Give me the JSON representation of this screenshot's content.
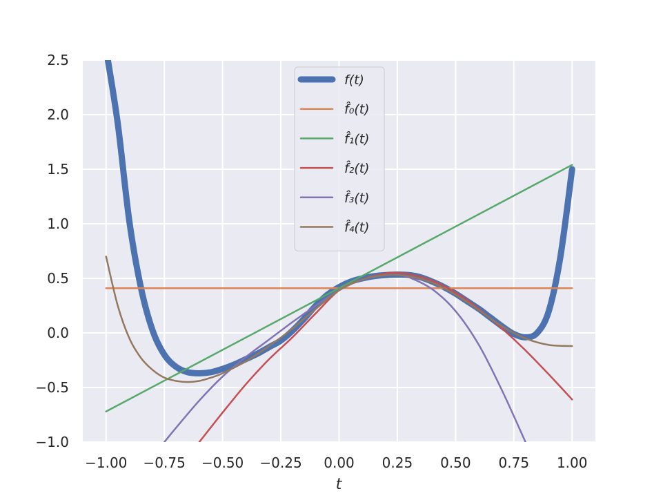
{
  "chart_data": {
    "type": "line",
    "xlabel": "t",
    "ylabel": "",
    "xlim": [
      -1.1,
      1.1
    ],
    "ylim": [
      -1.0,
      2.5
    ],
    "x_ticks": [
      -1.0,
      -0.75,
      -0.5,
      -0.25,
      0.0,
      0.25,
      0.5,
      0.75,
      1.0
    ],
    "x_tick_labels": [
      "−1.00",
      "−0.75",
      "−0.50",
      "−0.25",
      "0.00",
      "0.25",
      "0.50",
      "0.75",
      "1.00"
    ],
    "y_ticks": [
      -1.0,
      -0.5,
      0.0,
      0.5,
      1.0,
      1.5,
      2.0,
      2.5
    ],
    "y_tick_labels": [
      "−1.0",
      "−0.5",
      "0.0",
      "0.5",
      "1.0",
      "1.5",
      "2.0",
      "2.5"
    ],
    "grid": true,
    "legend_position": "top-center",
    "x_range": [
      -1.0,
      1.0
    ],
    "series": [
      {
        "name": "f(t)",
        "legend_label": "f(t)",
        "color": "#4c72b0",
        "line_width": 9,
        "x": [
          -1.0,
          -0.95,
          -0.9,
          -0.85,
          -0.8,
          -0.75,
          -0.7,
          -0.65,
          -0.6,
          -0.55,
          -0.5,
          -0.45,
          -0.4,
          -0.35,
          -0.3,
          -0.25,
          -0.2,
          -0.15,
          -0.1,
          -0.05,
          0.0,
          0.05,
          0.1,
          0.15,
          0.2,
          0.25,
          0.3,
          0.35,
          0.4,
          0.45,
          0.5,
          0.55,
          0.6,
          0.65,
          0.7,
          0.75,
          0.8,
          0.85,
          0.9,
          0.95,
          1.0
        ],
        "y": [
          2.6,
          1.92,
          1.02,
          0.41,
          0.02,
          -0.2,
          -0.31,
          -0.36,
          -0.37,
          -0.36,
          -0.33,
          -0.29,
          -0.24,
          -0.19,
          -0.13,
          -0.07,
          0.02,
          0.13,
          0.25,
          0.35,
          0.42,
          0.47,
          0.5,
          0.52,
          0.53,
          0.535,
          0.53,
          0.51,
          0.47,
          0.42,
          0.36,
          0.29,
          0.22,
          0.14,
          0.06,
          -0.01,
          -0.04,
          0.0,
          0.2,
          0.7,
          1.5
        ]
      },
      {
        "name": "f0",
        "legend_label": "f̂₀(t)",
        "color": "#dd8452",
        "line_width": 2.5,
        "x": [
          -1.0,
          1.0
        ],
        "y": [
          0.41,
          0.41
        ]
      },
      {
        "name": "f1",
        "legend_label": "f̂₁(t)",
        "color": "#55a868",
        "line_width": 2.5,
        "x": [
          -1.0,
          1.0
        ],
        "y": [
          -0.72,
          1.54
        ]
      },
      {
        "name": "f2",
        "legend_label": "f̂₂(t)",
        "color": "#c44e52",
        "line_width": 2.5,
        "x": [
          -0.6,
          -0.5,
          -0.4,
          -0.3,
          -0.2,
          -0.1,
          0.0,
          0.1,
          0.2,
          0.25,
          0.3,
          0.4,
          0.5,
          0.6,
          0.7,
          0.8,
          0.9,
          1.0
        ],
        "y": [
          -1.0,
          -0.73,
          -0.47,
          -0.24,
          -0.04,
          0.18,
          0.39,
          0.49,
          0.545,
          0.55,
          0.54,
          0.48,
          0.37,
          0.22,
          0.04,
          -0.16,
          -0.38,
          -0.61
        ]
      },
      {
        "name": "f3",
        "legend_label": "f̂₃(t)",
        "color": "#8172b3",
        "line_width": 2.5,
        "x": [
          -0.75,
          -0.7,
          -0.6,
          -0.5,
          -0.4,
          -0.3,
          -0.2,
          -0.1,
          0.0,
          0.1,
          0.2,
          0.25,
          0.3,
          0.4,
          0.5,
          0.6,
          0.7,
          0.8
        ],
        "y": [
          -1.0,
          -0.87,
          -0.62,
          -0.4,
          -0.22,
          -0.06,
          0.1,
          0.25,
          0.39,
          0.49,
          0.53,
          0.53,
          0.51,
          0.4,
          0.2,
          -0.11,
          -0.53,
          -1.0
        ]
      },
      {
        "name": "f4",
        "legend_label": "f̂₄(t)",
        "color": "#937860",
        "line_width": 2.5,
        "x": [
          -1.0,
          -0.95,
          -0.9,
          -0.85,
          -0.8,
          -0.75,
          -0.7,
          -0.65,
          -0.6,
          -0.55,
          -0.5,
          -0.4,
          -0.3,
          -0.2,
          -0.1,
          0.0,
          0.1,
          0.2,
          0.3,
          0.4,
          0.5,
          0.6,
          0.7,
          0.8,
          0.9,
          1.0
        ],
        "y": [
          0.7,
          0.25,
          -0.05,
          -0.23,
          -0.34,
          -0.41,
          -0.44,
          -0.45,
          -0.44,
          -0.41,
          -0.37,
          -0.26,
          -0.12,
          0.04,
          0.22,
          0.39,
          0.49,
          0.53,
          0.52,
          0.46,
          0.35,
          0.21,
          0.06,
          -0.05,
          -0.11,
          -0.12
        ]
      }
    ]
  }
}
